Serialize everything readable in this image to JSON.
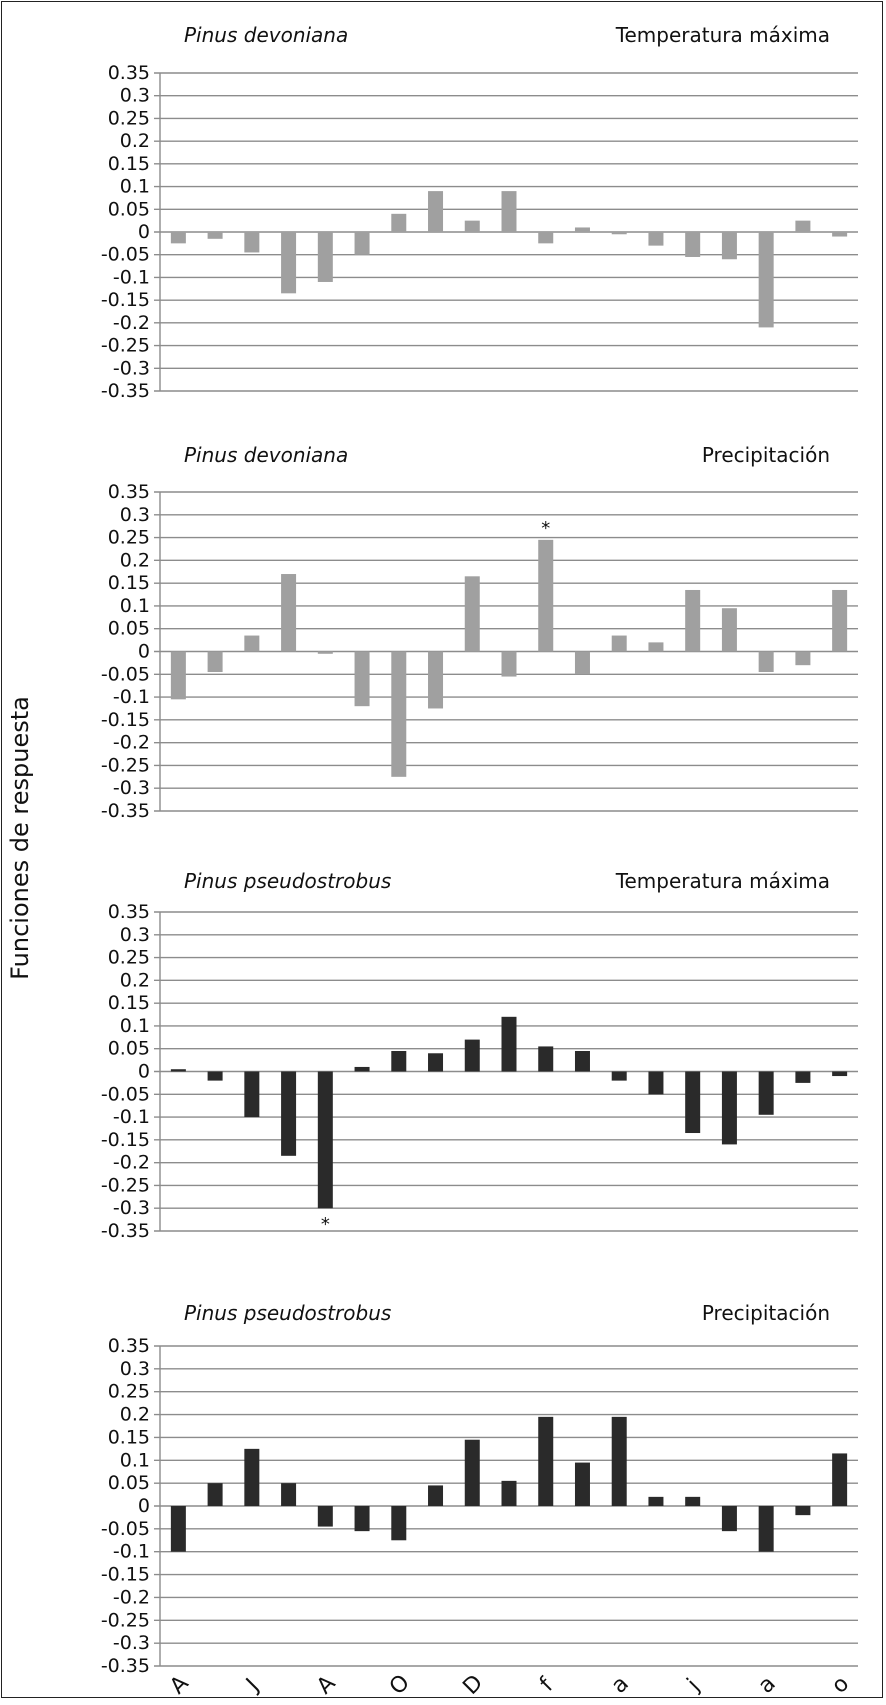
{
  "figure": {
    "y_axis_label": "Funciones de respuesta",
    "x_categories": [
      "A",
      "J",
      "A",
      "O",
      "D",
      "f",
      "a",
      "j",
      "a",
      "o"
    ]
  },
  "chart_data": [
    {
      "type": "bar",
      "species": "Pinus devoniana",
      "variable": "Temperatura máxima",
      "color": "#a0a0a0",
      "ylim": [
        -0.35,
        0.35
      ],
      "ytick_labels": [
        "0.35",
        "0.3",
        "0.25",
        "0.2",
        "0.15",
        "0.1",
        "0.05",
        "0",
        "-0.05",
        "-0.1",
        "-0.15",
        "-0.2",
        "-0.25",
        "-0.3",
        "-0.35"
      ],
      "grid": true,
      "values": [
        -0.025,
        -0.015,
        -0.045,
        -0.135,
        -0.11,
        -0.05,
        0.04,
        0.09,
        0.025,
        0.09,
        -0.025,
        0.01,
        -0.005,
        -0.03,
        -0.055,
        -0.06,
        -0.21,
        0.025,
        -0.01
      ],
      "annotations": []
    },
    {
      "type": "bar",
      "species": "Pinus devoniana",
      "variable": "Precipitación",
      "color": "#a0a0a0",
      "ylim": [
        -0.35,
        0.35
      ],
      "ytick_labels": [
        "0.35",
        "0.3",
        "0.25",
        "0.2",
        "0.15",
        "0.1",
        "0.05",
        "0",
        "-0.05",
        "-0.1",
        "-0.15",
        "-0.2",
        "-0.25",
        "-0.3",
        "-0.35"
      ],
      "grid": true,
      "values": [
        -0.105,
        -0.045,
        0.035,
        0.17,
        -0.005,
        -0.12,
        -0.275,
        -0.125,
        0.165,
        -0.055,
        0.245,
        -0.05,
        0.035,
        0.02,
        0.135,
        0.095,
        -0.045,
        -0.03,
        0.135
      ],
      "annotations": [
        {
          "bar": 10,
          "text": "*"
        }
      ]
    },
    {
      "type": "bar",
      "species": "Pinus pseudostrobus",
      "variable": "Temperatura máxima",
      "color": "#2a2a2a",
      "ylim": [
        -0.35,
        0.35
      ],
      "ytick_labels": [
        "0.35",
        "0.3",
        "0.25",
        "0.2",
        "0.15",
        "0.1",
        "0.05",
        "0",
        "-0.05",
        "-0.1",
        "-0.15",
        "-0.2",
        "-0.25",
        "-0.3",
        "-0.35"
      ],
      "grid": true,
      "values": [
        0.005,
        -0.02,
        -0.1,
        -0.185,
        -0.3,
        0.01,
        0.045,
        0.04,
        0.07,
        0.12,
        0.055,
        0.045,
        -0.02,
        -0.05,
        -0.135,
        -0.16,
        -0.095,
        -0.025,
        -0.01
      ],
      "annotations": [
        {
          "bar": 4,
          "text": "*"
        }
      ]
    },
    {
      "type": "bar",
      "species": "Pinus pseudostrobus",
      "variable": "Precipitación",
      "color": "#2a2a2a",
      "ylim": [
        -0.35,
        0.35
      ],
      "ytick_labels": [
        "0.35",
        "0.3",
        "0.25",
        "0.2",
        "0.15",
        "0.1",
        "0.05",
        "0",
        "-0.05",
        "-0.1",
        "-0.15",
        "-0.2",
        "-0.25",
        "-0.3",
        "-0.35"
      ],
      "grid": true,
      "values": [
        -0.1,
        0.05,
        0.125,
        0.05,
        -0.045,
        -0.055,
        -0.075,
        0.045,
        0.145,
        0.055,
        0.195,
        0.095,
        0.195,
        0.02,
        0.02,
        -0.055,
        -0.1,
        -0.02,
        0.115
      ],
      "annotations": []
    }
  ]
}
